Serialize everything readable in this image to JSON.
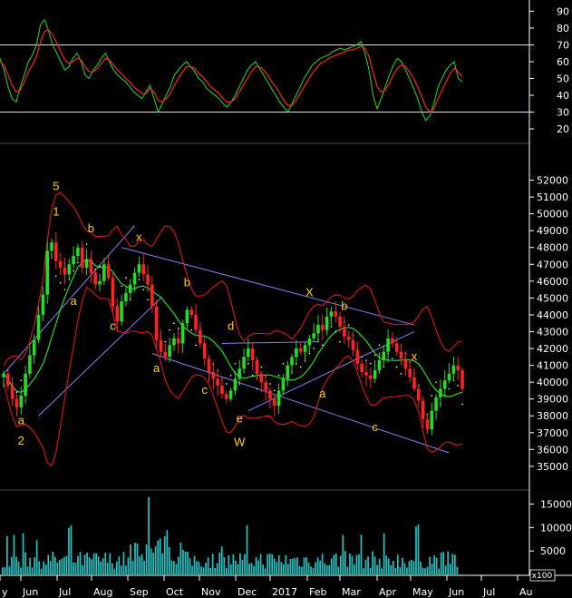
{
  "colors": {
    "background": "#000000",
    "up_candle": "#22dd22",
    "down_candle": "#ff2222",
    "bollinger": "#e01515",
    "moving_average": "#22dd22",
    "channel_lines": "#8a7cf0",
    "rsi_line": "#22dd22",
    "rsi_signal": "#ff2222",
    "rsi_levels": "#e6e6a0",
    "volume": "#1fc6c6",
    "labels": "#ffd200",
    "axis_text": "#ffffff"
  },
  "chart_data": [
    {
      "type": "line",
      "name": "rsi-panel",
      "y_ticks": [
        "90",
        "80",
        "70",
        "60",
        "50",
        "40",
        "30",
        "20"
      ],
      "ylim": [
        13,
        94
      ],
      "levels": [
        70,
        30
      ],
      "series": [
        {
          "values": [
            62,
            55,
            45,
            38,
            36,
            45,
            52,
            60,
            64,
            70,
            82,
            85,
            78,
            70,
            65,
            60,
            55,
            57,
            62,
            65,
            60,
            52,
            50,
            55,
            58,
            62,
            65,
            60,
            55,
            52,
            50,
            48,
            45,
            42,
            40,
            38,
            42,
            46,
            38,
            30,
            35,
            40,
            45,
            52,
            55,
            58,
            60,
            57,
            54,
            50,
            48,
            44,
            42,
            40,
            38,
            35,
            33,
            36,
            40,
            45,
            50,
            55,
            58,
            60,
            56,
            52,
            48,
            44,
            40,
            36,
            33,
            30,
            35,
            40,
            45,
            50,
            54,
            58,
            60,
            62,
            63,
            64,
            66,
            67,
            68,
            67,
            68,
            69,
            70,
            72,
            65,
            55,
            40,
            32,
            38,
            45,
            52,
            58,
            62,
            60,
            55,
            50,
            44,
            38,
            30,
            25,
            28,
            35,
            45,
            50,
            55,
            58,
            60,
            50,
            48
          ]
        },
        {
          "values": [
            60,
            58,
            52,
            46,
            42,
            43,
            48,
            54,
            58,
            63,
            72,
            78,
            79,
            76,
            71,
            66,
            61,
            59,
            60,
            62,
            61,
            57,
            54,
            54,
            56,
            59,
            62,
            61,
            58,
            55,
            53,
            50,
            48,
            45,
            43,
            41,
            41,
            44,
            42,
            37,
            36,
            38,
            41,
            46,
            50,
            54,
            57,
            57,
            56,
            53,
            51,
            48,
            45,
            43,
            41,
            38,
            36,
            36,
            38,
            42,
            46,
            50,
            54,
            57,
            57,
            55,
            52,
            48,
            45,
            41,
            37,
            34,
            34,
            37,
            41,
            45,
            49,
            53,
            56,
            59,
            60,
            62,
            63,
            64,
            65,
            66,
            67,
            67,
            68,
            69,
            68,
            63,
            54,
            45,
            42,
            43,
            47,
            52,
            56,
            58,
            57,
            54,
            50,
            45,
            39,
            33,
            30,
            32,
            38,
            43,
            48,
            53,
            56,
            54,
            51
          ]
        }
      ]
    },
    {
      "type": "candlestick",
      "name": "price-panel",
      "x_ticks": [
        "y",
        "Jun",
        "Jul",
        "Aug",
        "Sep",
        "Oct",
        "Nov",
        "Dec",
        "2017",
        "Feb",
        "Mar",
        "Apr",
        "May",
        "Jun",
        "Jul",
        "Au"
      ],
      "y_ticks": [
        "52000",
        "51000",
        "50000",
        "49000",
        "48000",
        "47000",
        "46000",
        "45000",
        "44000",
        "43000",
        "42000",
        "41000",
        "40000",
        "39000",
        "38000",
        "37000",
        "36000",
        "35000"
      ],
      "ylim": [
        34400,
        53000
      ],
      "close": [
        40500,
        39800,
        39000,
        38500,
        39200,
        40500,
        41600,
        42500,
        44000,
        45200,
        47800,
        48300,
        47200,
        46800,
        46400,
        47000,
        47500,
        48000,
        46800,
        47300,
        46500,
        45800,
        46000,
        47000,
        46200,
        44500,
        43600,
        44800,
        45300,
        45800,
        46500,
        47000,
        46400,
        45800,
        44500,
        42500,
        41800,
        41500,
        42200,
        42600,
        42300,
        43500,
        44300,
        44000,
        43100,
        42300,
        41400,
        40600,
        40200,
        39800,
        39300,
        39000,
        39500,
        40200,
        40800,
        41500,
        42000,
        41300,
        40500,
        40000,
        39500,
        39000,
        38600,
        39500,
        40200,
        41000,
        41500,
        42000,
        41800,
        42200,
        42600,
        42900,
        43400,
        43100,
        43900,
        44200,
        43900,
        43300,
        42700,
        42500,
        41900,
        41100,
        40600,
        40400,
        40200,
        40700,
        41300,
        41800,
        42600,
        42300,
        41800,
        41400,
        40800,
        40300,
        39600,
        38900,
        37800,
        37200,
        38300,
        39100,
        39600,
        40100,
        40500,
        41000,
        40700,
        39600
      ],
      "annotations": [
        {
          "text": "5",
          "x_index": 12,
          "y": 51400
        },
        {
          "text": "1",
          "x_index": 12,
          "y": 49900
        },
        {
          "text": "b",
          "x_index": 20,
          "y": 48900
        },
        {
          "text": "x",
          "x_index": 31,
          "y": 48400
        },
        {
          "text": "a",
          "x_index": 16,
          "y": 44600
        },
        {
          "text": "c",
          "x_index": 25,
          "y": 43100
        },
        {
          "text": "b",
          "x_index": 42,
          "y": 45700
        },
        {
          "text": "d",
          "x_index": 52,
          "y": 43100
        },
        {
          "text": "a",
          "x_index": 35,
          "y": 40600
        },
        {
          "text": "c",
          "x_index": 46,
          "y": 39300
        },
        {
          "text": "e",
          "x_index": 54,
          "y": 37600
        },
        {
          "text": "W",
          "x_index": 54,
          "y": 36200
        },
        {
          "text": "X",
          "x_index": 70,
          "y": 45100
        },
        {
          "text": "b",
          "x_index": 78,
          "y": 44300
        },
        {
          "text": "a",
          "x_index": 73,
          "y": 39100
        },
        {
          "text": "c",
          "x_index": 85,
          "y": 37100
        },
        {
          "text": "x",
          "x_index": 94,
          "y": 41300
        },
        {
          "text": "a",
          "x_index": 4,
          "y": 37500
        },
        {
          "text": "2",
          "x_index": 4,
          "y": 36300
        }
      ]
    },
    {
      "type": "bar",
      "name": "volume-panel",
      "y_ticks": [
        "15000",
        "10000",
        "5000"
      ],
      "ylim": [
        0,
        18000
      ],
      "unit_label": "x100"
    }
  ]
}
